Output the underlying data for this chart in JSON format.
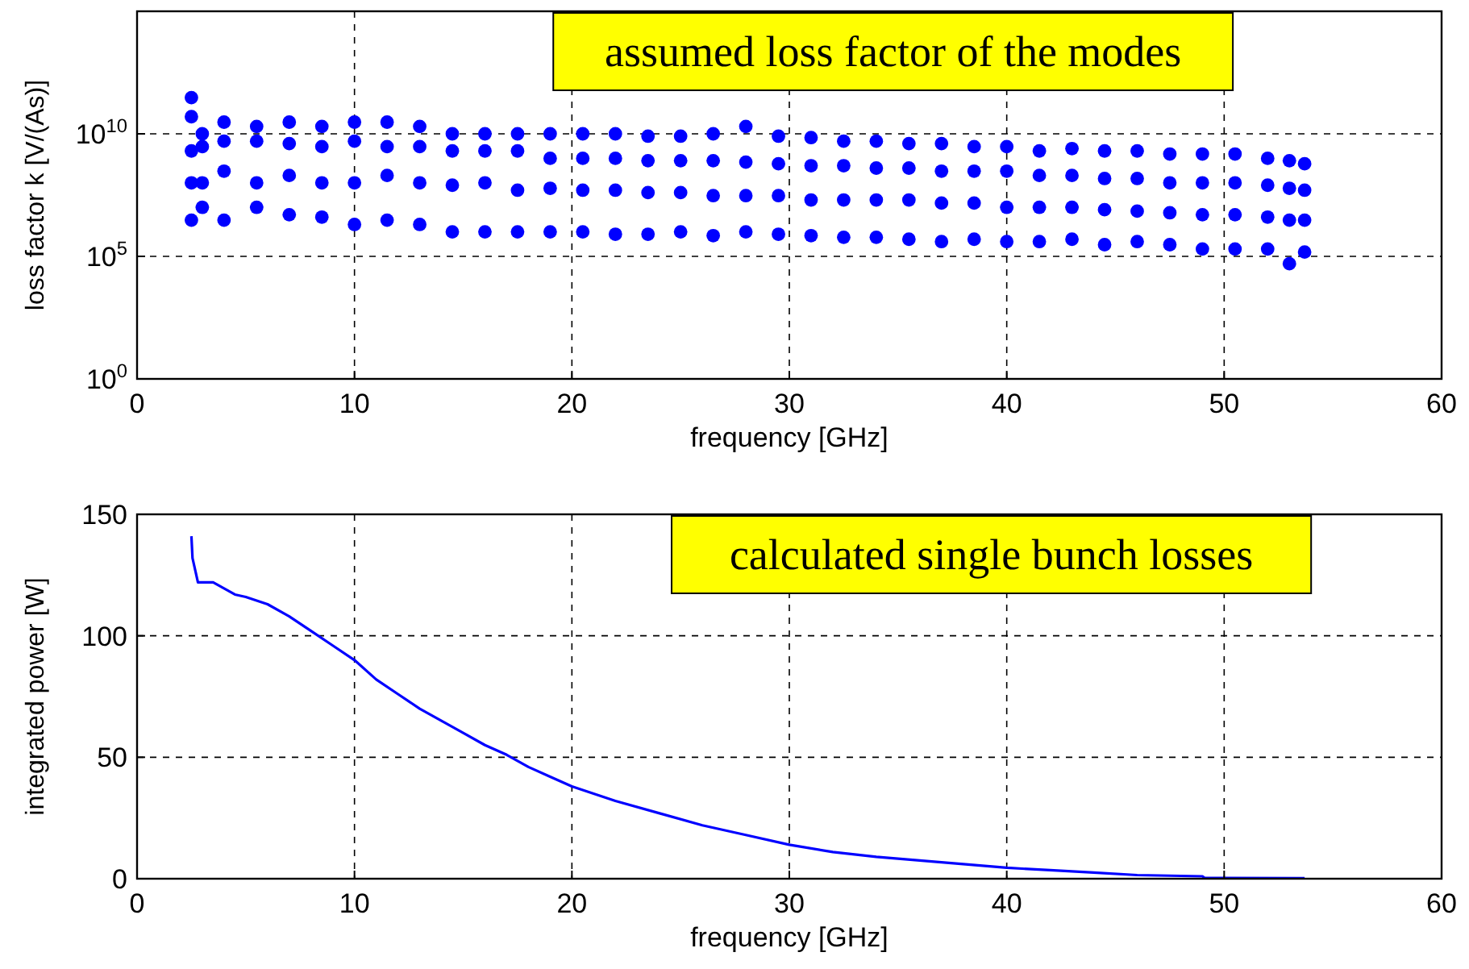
{
  "chart_data": [
    {
      "type": "scatter",
      "xlabel": "frequency [GHz]",
      "ylabel": "loss factor k  [V/(As)]",
      "log": "y",
      "grid": true,
      "marker": "circle",
      "annotations": [
        "assumed loss factor of the modes"
      ],
      "xlim": [
        0,
        60
      ],
      "xticks": [
        0,
        10,
        20,
        30,
        40,
        50,
        60
      ],
      "ylim": [
        1,
        1000000000000000.0
      ],
      "yticks": [
        {
          "value": 1,
          "label": "10$^{0}$"
        },
        {
          "value": 100000,
          "label": "10$^{5}$"
        },
        {
          "value": 10000000000,
          "label": "10$^{10}$"
        }
      ],
      "series": [
        {
          "color": "#0000ff",
          "x": [
            2.5,
            2.5,
            2.5,
            2.5,
            2.5,
            3,
            3,
            3,
            3,
            4,
            4,
            4,
            4,
            5.5,
            5.5,
            5.5,
            5.5,
            7,
            7,
            7,
            7,
            8.5,
            8.5,
            8.5,
            8.5,
            10,
            10,
            10,
            10,
            11.5,
            11.5,
            11.5,
            11.5,
            13,
            13,
            13,
            13,
            14.5,
            14.5,
            14.5,
            14.5,
            16,
            16,
            16,
            16,
            17.5,
            17.5,
            17.5,
            17.5,
            19,
            19,
            19,
            19,
            20.5,
            20.5,
            20.5,
            20.5,
            22,
            22,
            22,
            22,
            23.5,
            23.5,
            23.5,
            23.5,
            25,
            25,
            25,
            25,
            26.5,
            26.5,
            26.5,
            26.5,
            28,
            28,
            28,
            28,
            29.5,
            29.5,
            29.5,
            29.5,
            31,
            31,
            31,
            31,
            32.5,
            32.5,
            32.5,
            32.5,
            34,
            34,
            34,
            34,
            35.5,
            35.5,
            35.5,
            35.5,
            37,
            37,
            37,
            37,
            38.5,
            38.5,
            38.5,
            38.5,
            40,
            40,
            40,
            40,
            41.5,
            41.5,
            41.5,
            41.5,
            43,
            43,
            43,
            43,
            44.5,
            44.5,
            44.5,
            44.5,
            46,
            46,
            46,
            46,
            47.5,
            47.5,
            47.5,
            47.5,
            49,
            49,
            49,
            49,
            50.5,
            50.5,
            50.5,
            50.5,
            52,
            52,
            52,
            52,
            53,
            53,
            53,
            53,
            53.7,
            53.7,
            53.7,
            53.7
          ],
          "values": [
            300000000000.0,
            50000000000.0,
            2000000000.0,
            100000000.0,
            3000000.0,
            10000000000.0,
            3000000000.0,
            100000000.0,
            10000000.0,
            30000000000.0,
            5000000000.0,
            300000000.0,
            3000000.0,
            20000000000.0,
            5000000000.0,
            100000000.0,
            10000000.0,
            30000000000.0,
            4000000000.0,
            200000000.0,
            5000000.0,
            20000000000.0,
            3000000000.0,
            100000000.0,
            4000000.0,
            30000000000.0,
            5000000000.0,
            100000000.0,
            2000000.0,
            30000000000.0,
            3000000000.0,
            200000000.0,
            3000000.0,
            20000000000.0,
            3000000000.0,
            100000000.0,
            2000000.0,
            10000000000.0,
            2000000000.0,
            80000000.0,
            1000000.0,
            10000000000.0,
            2000000000.0,
            100000000.0,
            1000000.0,
            10000000000.0,
            2000000000.0,
            50000000.0,
            1000000.0,
            10000000000.0,
            1000000000.0,
            60000000.0,
            1000000.0,
            10000000000.0,
            1000000000.0,
            50000000.0,
            1000000.0,
            10000000000.0,
            1000000000.0,
            50000000.0,
            800000.0,
            8000000000.0,
            800000000.0,
            40000000.0,
            800000.0,
            8000000000.0,
            800000000.0,
            40000000.0,
            1000000.0,
            10000000000.0,
            800000000.0,
            30000000.0,
            700000.0,
            20000000000.0,
            700000000.0,
            30000000.0,
            1000000.0,
            8000000000.0,
            600000000.0,
            30000000.0,
            800000.0,
            7000000000.0,
            500000000.0,
            20000000.0,
            700000.0,
            5000000000.0,
            500000000.0,
            20000000.0,
            600000.0,
            5000000000.0,
            400000000.0,
            20000000.0,
            600000.0,
            4000000000.0,
            400000000.0,
            20000000.0,
            500000.0,
            4000000000.0,
            300000000.0,
            15000000.0,
            400000.0,
            3000000000.0,
            300000000.0,
            15000000.0,
            500000.0,
            3000000000.0,
            300000000.0,
            10000000.0,
            400000.0,
            2000000000.0,
            200000000.0,
            10000000.0,
            400000.0,
            2500000000.0,
            200000000.0,
            10000000.0,
            500000.0,
            2000000000.0,
            150000000.0,
            8000000.0,
            300000.0,
            2000000000.0,
            150000000.0,
            7000000.0,
            400000.0,
            1500000000.0,
            100000000.0,
            6000000.0,
            300000.0,
            1500000000.0,
            100000000.0,
            5000000.0,
            200000.0,
            1500000000.0,
            100000000.0,
            5000000.0,
            200000.0,
            1000000000.0,
            80000000.0,
            4000000.0,
            200000.0,
            800000000.0,
            60000000.0,
            3000000.0,
            50000.0,
            600000000.0,
            50000000.0,
            3000000.0,
            150000.0
          ]
        }
      ]
    },
    {
      "type": "line",
      "xlabel": "frequency [GHz]",
      "ylabel": "integrated power [W]",
      "grid": true,
      "annotations": [
        "calculated single bunch losses"
      ],
      "xlim": [
        0,
        60
      ],
      "xticks": [
        0,
        10,
        20,
        30,
        40,
        50,
        60
      ],
      "ylim": [
        0,
        150
      ],
      "yticks": [
        0,
        50,
        100,
        150
      ],
      "series": [
        {
          "color": "#0000ff",
          "x": [
            2.5,
            2.55,
            2.8,
            3.5,
            4.5,
            5,
            6,
            7,
            8,
            9,
            10,
            11,
            12,
            13,
            14,
            15,
            16,
            17,
            18,
            19,
            20,
            22,
            24,
            26,
            28,
            30,
            32,
            34,
            36,
            38,
            40,
            42,
            44,
            46,
            49,
            49.1,
            53.7
          ],
          "values": [
            141,
            132,
            122,
            122,
            117,
            116,
            113,
            108,
            102,
            96,
            90,
            82,
            76,
            70,
            65,
            60,
            55,
            51,
            46,
            42,
            38,
            32,
            27,
            22,
            18,
            14,
            11,
            9,
            7.5,
            6,
            4.5,
            3.5,
            2.5,
            1.5,
            1,
            0.3,
            0.2
          ]
        }
      ]
    }
  ]
}
